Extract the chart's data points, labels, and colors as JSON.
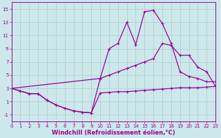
{
  "bg_color": "#cce8ea",
  "grid_color": "#aacccc",
  "line_color": "#990099",
  "markersize": 3,
  "linewidth": 0.9,
  "line1_x": [
    0,
    1,
    2,
    3,
    4,
    5,
    6,
    7,
    8,
    9,
    10,
    11,
    12,
    13,
    14,
    15,
    16,
    17,
    18,
    19,
    20,
    21,
    22,
    23
  ],
  "line1_y": [
    3,
    2.6,
    2.2,
    2.2,
    1.2,
    0.5,
    0.0,
    -0.4,
    -0.6,
    -0.7,
    2.3,
    2.4,
    2.5,
    2.5,
    2.6,
    2.7,
    2.8,
    2.9,
    3.0,
    3.1,
    3.1,
    3.1,
    3.2,
    3.3
  ],
  "line2_x": [
    0,
    1,
    2,
    3,
    4,
    5,
    6,
    7,
    8,
    9,
    10,
    11,
    12,
    13,
    14,
    15,
    16,
    17,
    18,
    19,
    20,
    21,
    22,
    23
  ],
  "line2_y": [
    3,
    2.6,
    2.2,
    2.2,
    1.2,
    0.5,
    0.0,
    -0.4,
    -0.6,
    -0.7,
    4.5,
    9.0,
    9.8,
    13.0,
    9.6,
    14.6,
    14.8,
    12.8,
    9.8,
    5.5,
    4.8,
    4.5,
    4.0,
    4.0
  ],
  "line3_x": [
    0,
    10,
    11,
    12,
    13,
    14,
    15,
    16,
    17,
    18,
    19,
    20,
    21,
    22,
    23
  ],
  "line3_y": [
    3,
    4.5,
    5.0,
    5.5,
    6.0,
    6.5,
    7.0,
    7.5,
    9.8,
    9.5,
    8.0,
    8.0,
    6.2,
    5.5,
    3.3
  ],
  "xlim": [
    0,
    23
  ],
  "ylim": [
    -2,
    16
  ],
  "yticks": [
    -1,
    1,
    3,
    5,
    7,
    9,
    11,
    13,
    15
  ],
  "xticks": [
    0,
    1,
    2,
    3,
    4,
    5,
    6,
    7,
    8,
    9,
    10,
    11,
    12,
    13,
    14,
    15,
    16,
    17,
    18,
    19,
    20,
    21,
    22,
    23
  ],
  "xlabel": "Windchill (Refroidissement éolien,°C)",
  "xlabel_fontsize": 6,
  "tick_fontsize": 5
}
